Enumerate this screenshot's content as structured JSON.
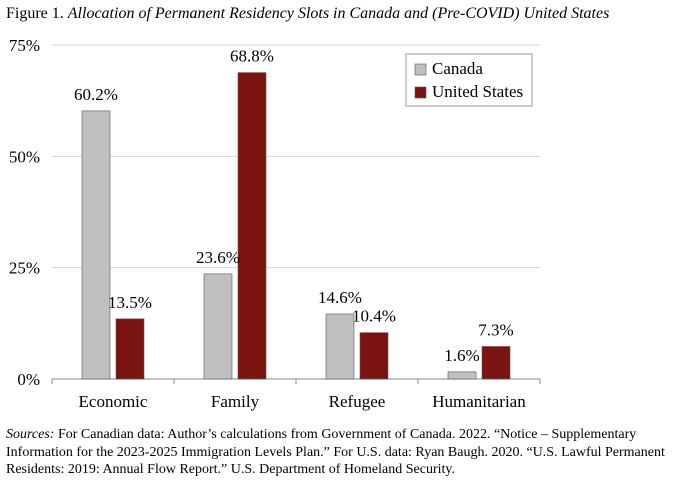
{
  "figure": {
    "label": "Figure 1.",
    "title": "Allocation of Permanent Residency Slots in Canada and (Pre-COVID) United States"
  },
  "sources": {
    "label": "Sources:",
    "text": "For Canadian data: Author’s calculations from Government of Canada. 2022. “Notice – Supplementary Information for the 2023-2025 Immigration Levels Plan.”  For U.S. data: Ryan Baugh. 2020. “U.S. Lawful Permanent Residents: 2019: Annual Flow Report.” U.S. Department of Homeland Security."
  },
  "colors": {
    "canada": "#c0c0c0",
    "united_states": "#7b1411",
    "gridline": "#d0d0d0",
    "axis": "#888888"
  },
  "chart_data": {
    "type": "bar",
    "title": "Allocation of Permanent Residency Slots in Canada and (Pre-COVID) United States",
    "categories": [
      "Economic",
      "Family",
      "Refugee",
      "Humanitarian"
    ],
    "series": [
      {
        "name": "Canada",
        "values": [
          60.2,
          23.6,
          14.6,
          1.6
        ],
        "labels": [
          "60.2%",
          "23.6%",
          "14.6%",
          "1.6%"
        ]
      },
      {
        "name": "United States",
        "values": [
          13.5,
          68.8,
          10.4,
          7.3
        ],
        "labels": [
          "13.5%",
          "68.8%",
          "10.4%",
          "7.3%"
        ]
      }
    ],
    "yticks": [
      0,
      25,
      50,
      75
    ],
    "ytick_labels": [
      "0%",
      "25%",
      "50%",
      "75%"
    ],
    "ylim": [
      0,
      75
    ],
    "grid": true,
    "legend_position": "top-right",
    "xlabel": "",
    "ylabel": ""
  }
}
